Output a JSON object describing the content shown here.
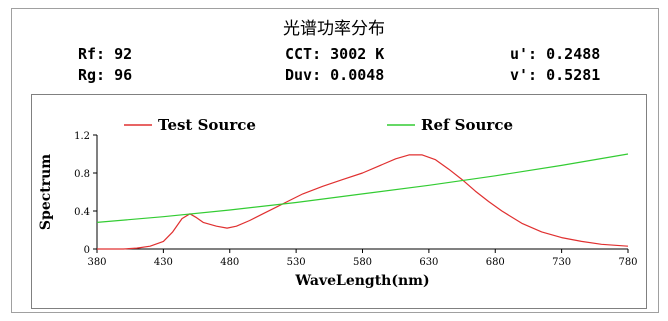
{
  "title": "光谱功率分布",
  "metrics": {
    "rf_label": "Rf:",
    "rf_value": "92",
    "rg_label": "Rg:",
    "rg_value": "96",
    "cct_label": "CCT:",
    "cct_value": "3002 K",
    "duv_label": "Duv:",
    "duv_value": "0.0048",
    "u_label": "u':",
    "u_value": "0.2488",
    "v_label": "v':",
    "v_value": "0.5281"
  },
  "chart_data": {
    "type": "line",
    "xlabel": "WaveLength(nm)",
    "ylabel": "Spectrum",
    "xlim": [
      380,
      780
    ],
    "ylim": [
      0,
      1.2
    ],
    "x_ticks": [
      "380",
      "430",
      "480",
      "530",
      "580",
      "630",
      "680",
      "730",
      "780"
    ],
    "y_ticks": [
      "0",
      "0.4",
      "0.8",
      "1.2"
    ],
    "grid": false,
    "legend_position": "top",
    "series": [
      {
        "name": "Test Source",
        "color": "#e03030",
        "x": [
          380,
          400,
          410,
          420,
          430,
          437,
          444,
          450,
          455,
          460,
          470,
          478,
          485,
          495,
          505,
          515,
          525,
          535,
          550,
          565,
          580,
          595,
          605,
          615,
          625,
          635,
          645,
          655,
          665,
          675,
          685,
          700,
          715,
          730,
          745,
          760,
          780
        ],
        "y": [
          0,
          0,
          0.01,
          0.03,
          0.08,
          0.18,
          0.32,
          0.37,
          0.33,
          0.28,
          0.24,
          0.22,
          0.24,
          0.3,
          0.37,
          0.44,
          0.51,
          0.58,
          0.66,
          0.73,
          0.8,
          0.89,
          0.95,
          0.99,
          0.99,
          0.94,
          0.84,
          0.73,
          0.61,
          0.5,
          0.4,
          0.27,
          0.18,
          0.12,
          0.08,
          0.05,
          0.03
        ]
      },
      {
        "name": "Ref Source",
        "color": "#33cc33",
        "x": [
          380,
          430,
          480,
          530,
          580,
          630,
          680,
          730,
          780
        ],
        "y": [
          0.28,
          0.34,
          0.41,
          0.49,
          0.58,
          0.67,
          0.77,
          0.88,
          1.0
        ]
      }
    ]
  }
}
